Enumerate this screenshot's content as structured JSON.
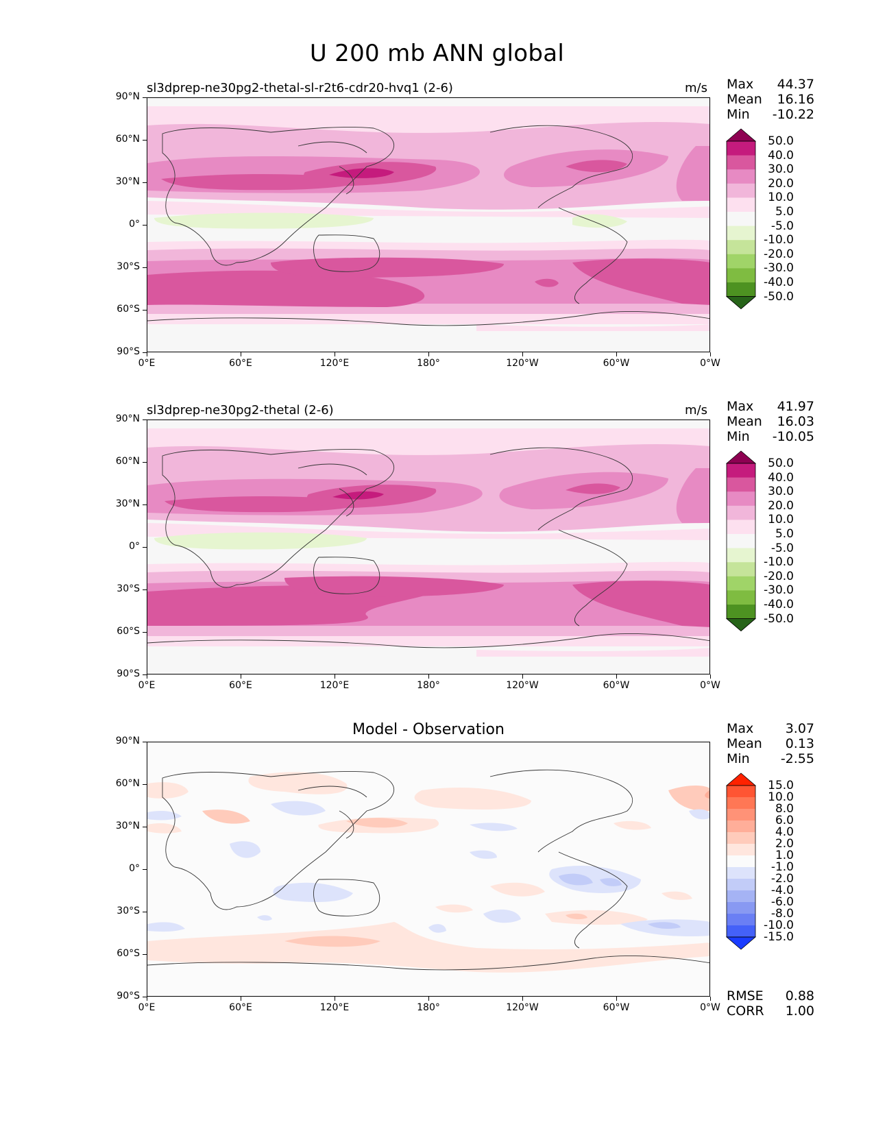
{
  "title": "U 200 mb ANN global",
  "axes": {
    "lat_labels": [
      "90°N",
      "60°N",
      "30°N",
      "0°",
      "30°S",
      "60°S",
      "90°S"
    ],
    "lon_labels": [
      "0°E",
      "60°E",
      "120°E",
      "180°",
      "120°W",
      "60°W",
      "0°W"
    ]
  },
  "panels": [
    {
      "title": "sl3dprep-ne30pg2-thetal-sl-r2t6-cdr20-hvq1 (2-6)",
      "units": "m/s",
      "stats": {
        "max_label": "Max",
        "max": "44.37",
        "mean_label": "Mean",
        "mean": "16.16",
        "min_label": "Min",
        "min": "-10.22"
      }
    },
    {
      "title": "sl3dprep-ne30pg2-thetal (2-6)",
      "units": "m/s",
      "stats": {
        "max_label": "Max",
        "max": "41.97",
        "mean_label": "Mean",
        "mean": "16.03",
        "min_label": "Min",
        "min": "-10.05"
      }
    },
    {
      "title": "Model - Observation",
      "units": "",
      "stats": {
        "max_label": "Max",
        "max": "3.07",
        "mean_label": "Mean",
        "mean": "0.13",
        "min_label": "Min",
        "min": "-2.55"
      },
      "metrics": {
        "rmse_label": "RMSE",
        "rmse": "0.88",
        "corr_label": "CORR",
        "corr": "1.00"
      }
    }
  ],
  "colorbars": {
    "field": {
      "labels": [
        "50.0",
        "40.0",
        "30.0",
        "20.0",
        "10.0",
        "5.0",
        "-5.0",
        "-10.0",
        "-20.0",
        "-30.0",
        "-40.0",
        "-50.0"
      ],
      "colors": [
        "#8e0152",
        "#c51b7d",
        "#d9579e",
        "#e78ac3",
        "#f1b6da",
        "#fde0ef",
        "#f7f7f7",
        "#e6f5d0",
        "#c5e49a",
        "#a0d468",
        "#7fbc41",
        "#4d9221",
        "#276419"
      ]
    },
    "diff": {
      "labels": [
        "15.0",
        "10.0",
        "8.0",
        "6.0",
        "4.0",
        "2.0",
        "1.0",
        "-1.0",
        "-2.0",
        "-4.0",
        "-6.0",
        "-8.0",
        "-10.0",
        "-15.0"
      ],
      "colors": [
        "#ff2200",
        "#ff5533",
        "#ff7755",
        "#ff9277",
        "#ffae99",
        "#ffcbbb",
        "#ffe6de",
        "#fbfbfb",
        "#dde3fb",
        "#c2ccf8",
        "#a5b3f4",
        "#8899f2",
        "#6a7ff4",
        "#4461f8",
        "#1a3cff"
      ]
    }
  }
}
